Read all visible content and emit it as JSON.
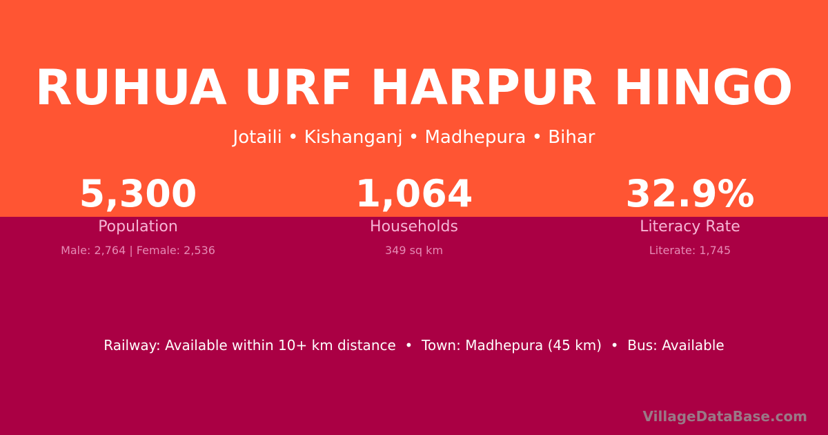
{
  "colors": {
    "top_band": "#FF5533",
    "bottom_band": "#AA0044",
    "label": "#F6B6D6",
    "detail": "#E58AB5"
  },
  "title": "RUHUA URF HARPUR HINGO",
  "location": "Jotaili • Kishanganj • Madhepura • Bihar",
  "stats": [
    {
      "value": "5,300",
      "label": "Population",
      "detail": "Male: 2,764 | Female: 2,536"
    },
    {
      "value": "1,064",
      "label": "Households",
      "detail": "349 sq km"
    },
    {
      "value": "32.9%",
      "label": "Literacy Rate",
      "detail": "Literate: 1,745"
    }
  ],
  "transport": "Railway: Available within 10+ km distance  •  Town: Madhepura (45 km)  •  Bus: Available",
  "watermark": "VillageDataBase.com"
}
